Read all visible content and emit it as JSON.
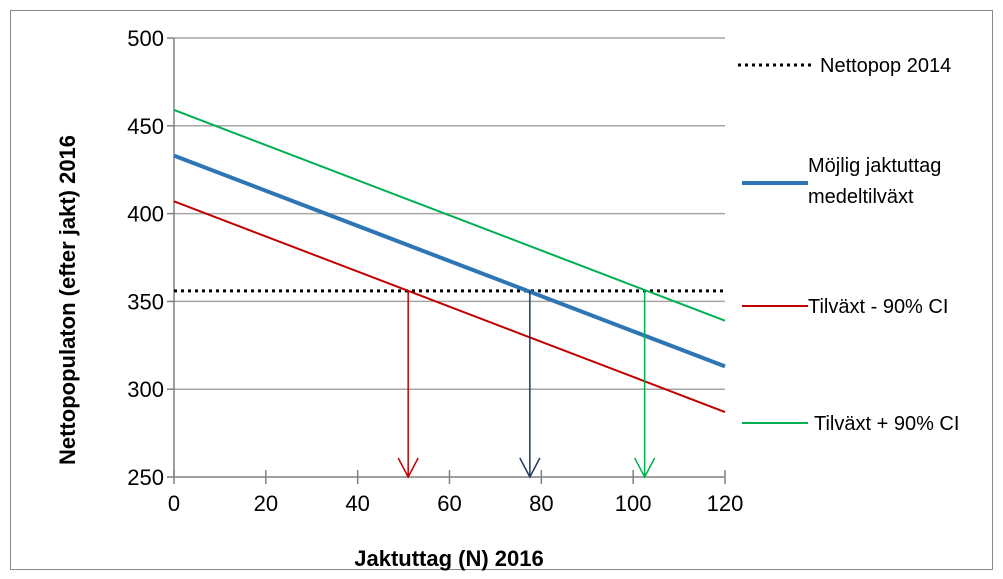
{
  "chart_data": {
    "type": "line",
    "xlabel": "Jaktuttag (N) 2016",
    "ylabel": "Nettopopulaton (efter jakt)  2016",
    "xlim": [
      0,
      120
    ],
    "ylim": [
      250,
      500
    ],
    "xticks": [
      0,
      20,
      40,
      60,
      80,
      100,
      120
    ],
    "yticks": [
      250,
      300,
      350,
      400,
      450,
      500
    ],
    "grid": "horizontal",
    "legend_position": "right",
    "series": [
      {
        "name": "Nettopop 2014",
        "style": "dotted",
        "color": "#000000",
        "width": 3,
        "x": [
          0,
          120
        ],
        "y": [
          356,
          356
        ]
      },
      {
        "name": "Möjlig jaktuttag medeltilväxt",
        "name_lines": [
          "Möjlig jaktuttag",
          "medeltilväxt"
        ],
        "style": "solid",
        "color": "#2E75B6",
        "width": 4,
        "x": [
          0,
          120
        ],
        "y": [
          433,
          313
        ]
      },
      {
        "name": "Tilväxt - 90% CI",
        "style": "solid",
        "color": "#C00000",
        "width": 2,
        "x": [
          0,
          120
        ],
        "y": [
          407,
          287
        ]
      },
      {
        "name": "Tilväxt + 90% CI",
        "style": "solid",
        "color": "#00B050",
        "width": 2,
        "x": [
          0,
          120
        ],
        "y": [
          459,
          339
        ]
      }
    ],
    "annotations": [
      {
        "type": "arrow",
        "x": 51,
        "y_from": 356,
        "y_to": 250,
        "color": "#C00000"
      },
      {
        "type": "arrow",
        "x": 77.5,
        "y_from": 356,
        "y_to": 250,
        "color": "#1F3864"
      },
      {
        "type": "arrow",
        "x": 102.5,
        "y_from": 356,
        "y_to": 250,
        "color": "#00B050"
      }
    ]
  }
}
